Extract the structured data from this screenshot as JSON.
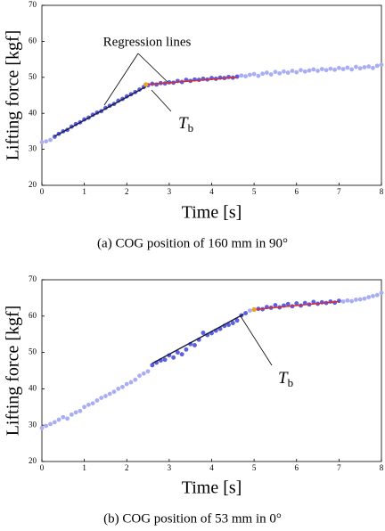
{
  "chart_data": [
    {
      "type": "scatter",
      "xlabel": "Time [s]",
      "ylabel": "Lifting force [kgf]",
      "caption": "(a) COG position of 160 mm in 90°",
      "xlim": [
        0,
        8
      ],
      "ylim": [
        20,
        70
      ],
      "xticks": [
        0,
        1,
        2,
        3,
        4,
        5,
        6,
        7,
        8
      ],
      "yticks": [
        20,
        30,
        40,
        50,
        60,
        70
      ],
      "annotation": "Regression lines",
      "tb_label": "T",
      "tb_subscript": "b",
      "series": [
        {
          "color": "#a9aef4",
          "x": [
            0,
            0.1,
            0.2,
            0.3,
            0.4,
            0.5,
            0.6,
            0.7,
            0.8,
            0.9,
            1,
            1.1,
            1.2,
            1.3,
            1.4,
            1.5,
            1.6,
            1.7,
            1.8,
            1.9,
            2,
            2.1,
            2.2,
            2.3,
            2.4,
            2.5,
            2.6,
            2.7,
            2.8,
            2.9,
            3,
            3.1,
            3.2,
            3.3,
            3.4,
            3.5,
            3.6,
            3.7,
            3.8,
            3.9,
            4,
            4.1,
            4.2,
            4.3,
            4.4,
            4.5,
            4.6,
            4.7,
            4.8,
            4.9,
            5,
            5.1,
            5.2,
            5.3,
            5.4,
            5.5,
            5.6,
            5.7,
            5.8,
            5.9,
            6,
            6.1,
            6.2,
            6.3,
            6.4,
            6.5,
            6.6,
            6.7,
            6.8,
            6.9,
            7,
            7.1,
            7.2,
            7.3,
            7.4,
            7.5,
            7.6,
            7.7,
            7.8,
            7.9,
            8
          ],
          "values": [
            32.0,
            32.2,
            32.6,
            33.5,
            34.3,
            35.0,
            35.4,
            36.3,
            37.0,
            37.5,
            38.3,
            38.8,
            39.6,
            40.2,
            40.6,
            41.5,
            42.1,
            42.6,
            43.5,
            44.0,
            44.7,
            45.3,
            45.9,
            46.6,
            47.3,
            47.8,
            48.2,
            48.0,
            48.4,
            48.3,
            48.6,
            48.5,
            49.0,
            48.7,
            49.3,
            49.0,
            49.4,
            49.3,
            49.6,
            49.4,
            49.8,
            49.6,
            49.9,
            49.8,
            50.1,
            49.9,
            50.2,
            50.5,
            50.3,
            50.7,
            50.9,
            50.4,
            51.0,
            51.3,
            50.8,
            51.5,
            51.1,
            51.6,
            51.3,
            51.8,
            51.4,
            52.0,
            51.6,
            51.9,
            52.2,
            51.8,
            52.3,
            52.0,
            52.4,
            52.1,
            52.6,
            52.3,
            52.7,
            52.2,
            52.9,
            52.5,
            52.8,
            53.0,
            52.6,
            53.2,
            53.5
          ]
        },
        {
          "color": "#5b5fe2",
          "x": [
            0.3,
            0.4,
            0.5,
            0.6,
            0.7,
            0.8,
            0.9,
            1,
            1.1,
            1.2,
            1.3,
            1.4,
            1.5,
            1.6,
            1.7,
            1.8,
            1.9,
            2,
            2.1,
            2.2,
            2.3,
            2.4,
            2.5,
            2.6,
            2.7,
            2.8,
            2.9,
            3,
            3.1,
            3.2,
            3.3,
            3.4,
            3.5,
            3.6,
            3.7,
            3.8,
            3.9,
            4,
            4.1,
            4.2,
            4.3,
            4.4,
            4.5,
            4.6
          ],
          "values": [
            33.5,
            34.3,
            35.0,
            35.4,
            36.3,
            37.0,
            37.5,
            38.3,
            38.8,
            39.6,
            40.2,
            40.6,
            41.5,
            42.1,
            42.6,
            43.5,
            44.0,
            44.7,
            45.3,
            45.9,
            46.6,
            47.3,
            47.8,
            48.2,
            48.0,
            48.4,
            48.3,
            48.6,
            48.5,
            49.0,
            48.7,
            49.3,
            49.0,
            49.4,
            49.3,
            49.6,
            49.4,
            49.8,
            49.6,
            49.9,
            49.8,
            50.1,
            49.9,
            50.2
          ]
        }
      ],
      "lines": [
        {
          "color": "#1a1a40",
          "x": [
            0.3,
            2.45
          ],
          "values": [
            33.6,
            47.4
          ]
        },
        {
          "color": "#e02828",
          "x": [
            2.45,
            4.6
          ],
          "values": [
            48.0,
            50.0
          ]
        }
      ],
      "tb_point": {
        "color": "#f0a020",
        "x": 2.45,
        "value": 48.0
      }
    },
    {
      "type": "scatter",
      "xlabel": "Time [s]",
      "ylabel": "Lifting force [kgf]",
      "caption": "(b) COG position of 53 mm in 0°",
      "xlim": [
        0,
        8
      ],
      "ylim": [
        20,
        70
      ],
      "xticks": [
        0,
        1,
        2,
        3,
        4,
        5,
        6,
        7,
        8
      ],
      "yticks": [
        20,
        30,
        40,
        50,
        60,
        70
      ],
      "tb_label": "T",
      "tb_subscript": "b",
      "series": [
        {
          "color": "#a9aef4",
          "x": [
            0,
            0.1,
            0.2,
            0.3,
            0.4,
            0.5,
            0.6,
            0.7,
            0.8,
            0.9,
            1,
            1.1,
            1.2,
            1.3,
            1.4,
            1.5,
            1.6,
            1.7,
            1.8,
            1.9,
            2,
            2.1,
            2.2,
            2.3,
            2.4,
            2.5,
            2.6,
            2.7,
            2.8,
            2.9,
            3,
            3.1,
            3.2,
            3.3,
            3.4,
            3.5,
            3.6,
            3.7,
            3.8,
            3.9,
            4,
            4.1,
            4.2,
            4.3,
            4.4,
            4.5,
            4.6,
            4.7,
            4.8,
            4.9,
            5,
            5.1,
            5.2,
            5.3,
            5.4,
            5.5,
            5.6,
            5.7,
            5.8,
            5.9,
            6,
            6.1,
            6.2,
            6.3,
            6.4,
            6.5,
            6.6,
            6.7,
            6.8,
            6.9,
            7,
            7.1,
            7.2,
            7.3,
            7.4,
            7.5,
            7.6,
            7.7,
            7.8,
            7.9,
            8
          ],
          "values": [
            29.2,
            29.8,
            30.3,
            30.8,
            31.5,
            32.2,
            31.8,
            32.9,
            33.5,
            33.9,
            35.0,
            35.6,
            36.0,
            36.8,
            37.5,
            38.0,
            38.6,
            39.2,
            40.0,
            40.5,
            41.3,
            41.8,
            42.5,
            43.6,
            44.2,
            44.8,
            46.5,
            47.2,
            47.8,
            48.0,
            49.2,
            48.6,
            50.0,
            49.5,
            50.8,
            52.3,
            52.0,
            53.5,
            55.4,
            54.8,
            55.3,
            56.0,
            56.5,
            57.3,
            57.6,
            58.1,
            58.8,
            60.2,
            60.8,
            61.5,
            61.8,
            62.0,
            61.9,
            62.5,
            62.3,
            63.0,
            62.4,
            62.9,
            63.3,
            62.7,
            63.5,
            62.9,
            63.6,
            63.2,
            63.9,
            63.4,
            63.8,
            63.6,
            64.0,
            63.7,
            64.2,
            64.0,
            64.3,
            64.1,
            64.5,
            64.6,
            64.8,
            65.2,
            65.5,
            65.8,
            66.4
          ]
        },
        {
          "color": "#5b5fe2",
          "x": [
            2.6,
            2.7,
            2.8,
            2.9,
            3,
            3.1,
            3.2,
            3.3,
            3.4,
            3.5,
            3.6,
            3.7,
            3.8,
            3.9,
            4,
            4.1,
            4.2,
            4.3,
            4.4,
            4.5,
            4.6,
            4.7,
            4.8,
            5,
            5.1,
            5.2,
            5.3,
            5.4,
            5.5,
            5.6,
            5.7,
            5.8,
            5.9,
            6,
            6.1,
            6.2,
            6.3,
            6.4,
            6.5,
            6.6,
            6.7,
            6.8,
            6.9,
            7
          ],
          "values": [
            46.5,
            47.2,
            47.8,
            48.0,
            49.2,
            48.6,
            50.0,
            49.5,
            50.8,
            52.3,
            52.0,
            53.5,
            55.4,
            54.8,
            55.3,
            56.0,
            56.5,
            57.3,
            57.6,
            58.1,
            58.8,
            60.2,
            60.8,
            61.8,
            62.0,
            61.9,
            62.5,
            62.3,
            63.0,
            62.4,
            62.9,
            63.3,
            62.7,
            63.5,
            62.9,
            63.6,
            63.2,
            63.9,
            63.4,
            63.8,
            63.6,
            64.0,
            63.7,
            64.2
          ]
        }
      ],
      "lines": [
        {
          "color": "#1a1a40",
          "x": [
            2.6,
            4.75
          ],
          "values": [
            47.0,
            60.5
          ]
        },
        {
          "color": "#e02828",
          "x": [
            5.0,
            7.0
          ],
          "values": [
            61.8,
            64.0
          ]
        }
      ],
      "tb_point": {
        "color": "#f0a020",
        "x": 5.0,
        "value": 61.8
      }
    }
  ]
}
